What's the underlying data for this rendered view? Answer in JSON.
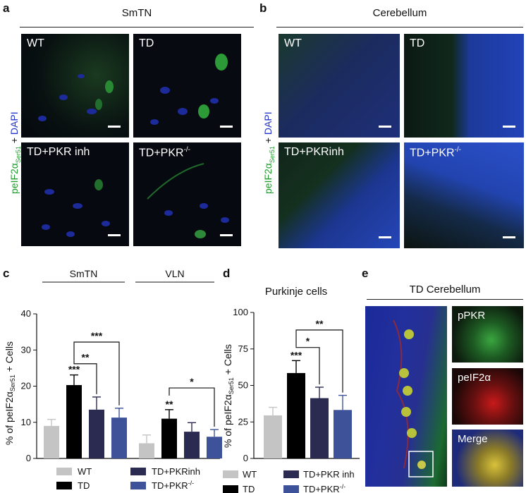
{
  "panels": {
    "a": {
      "letter": "a",
      "title": "SmTN",
      "tiles": [
        "WT",
        "TD",
        "TD+PKR inh",
        "TD+PKR"
      ],
      "tile4_sup": "-/-"
    },
    "b": {
      "letter": "b",
      "title": "Cerebellum",
      "tiles": [
        "WT",
        "TD",
        "TD+PKRinh",
        "TD+PKR"
      ],
      "tile4_sup": "-/-"
    },
    "ylabel_stain": {
      "p1": "peIF2α",
      "sub": "Ser51",
      "p2": " + ",
      "p3": "DAPI"
    },
    "c": {
      "letter": "c",
      "groups": [
        "SmTN",
        "VLN"
      ]
    },
    "d": {
      "letter": "d",
      "title": "Purkinje cells"
    },
    "e": {
      "letter": "e",
      "title": "TD  Cerebellum",
      "insets": [
        "pPKR",
        "peIF2α",
        "Merge"
      ]
    }
  },
  "colors": {
    "WT": "#c4c4c4",
    "TD": "#000000",
    "TD+PKRinh": "#2b2b52",
    "TD+PKR-/-": "#3e5299"
  },
  "chart_data": [
    {
      "type": "bar",
      "panel": "c",
      "title": "",
      "ylabel": "% of peIF2αSer51 + Cells",
      "ylim": [
        0,
        40
      ],
      "yticks": [
        "0",
        "10",
        "20",
        "30",
        "40"
      ],
      "categories": [
        "SmTN",
        "VLN"
      ],
      "series": [
        {
          "name": "WT",
          "values": [
            9,
            4.2
          ],
          "errors": [
            1.8,
            2.3
          ]
        },
        {
          "name": "TD",
          "values": [
            20.3,
            11
          ],
          "errors": [
            2.8,
            2.5
          ]
        },
        {
          "name": "TD+PKRinh",
          "values": [
            13.5,
            7.4
          ],
          "errors": [
            3.5,
            2.5
          ]
        },
        {
          "name": "TD+PKR-/-",
          "values": [
            11.3,
            6
          ],
          "errors": [
            2.6,
            2
          ]
        }
      ],
      "annotations": [
        {
          "group": "SmTN",
          "label": "***",
          "over": "TD"
        },
        {
          "group": "SmTN",
          "label": "**",
          "from": "TD",
          "to": "TD+PKRinh"
        },
        {
          "group": "SmTN",
          "label": "***",
          "from": "TD",
          "to": "TD+PKR-/-"
        },
        {
          "group": "VLN",
          "label": "**",
          "over": "TD"
        },
        {
          "group": "VLN",
          "label": "*",
          "from": "TD",
          "to": "TD+PKR-/-"
        }
      ],
      "legend": [
        "WT",
        "TD",
        "TD+PKRinh",
        "TD+PKR-/-"
      ]
    },
    {
      "type": "bar",
      "panel": "d",
      "title": "Purkinje cells",
      "ylabel": "% of peIF2αSer51 + Cells",
      "ylim": [
        0,
        100
      ],
      "yticks": [
        "0",
        "25",
        "50",
        "75",
        "100"
      ],
      "categories": [
        "WT",
        "TD",
        "TD+PKRinh",
        "TD+PKR-/-"
      ],
      "values": [
        29.5,
        58.5,
        41.3,
        33.2
      ],
      "errors": [
        5.5,
        8.5,
        7.5,
        10
      ],
      "annotations": [
        {
          "label": "***",
          "over": "TD"
        },
        {
          "label": "*",
          "from": "TD",
          "to": "TD+PKRinh"
        },
        {
          "label": "**",
          "from": "TD",
          "to": "TD+PKR-/-"
        }
      ],
      "legend": [
        "WT",
        "TD",
        "TD+PKR inh",
        "TD+PKR-/-"
      ]
    }
  ]
}
